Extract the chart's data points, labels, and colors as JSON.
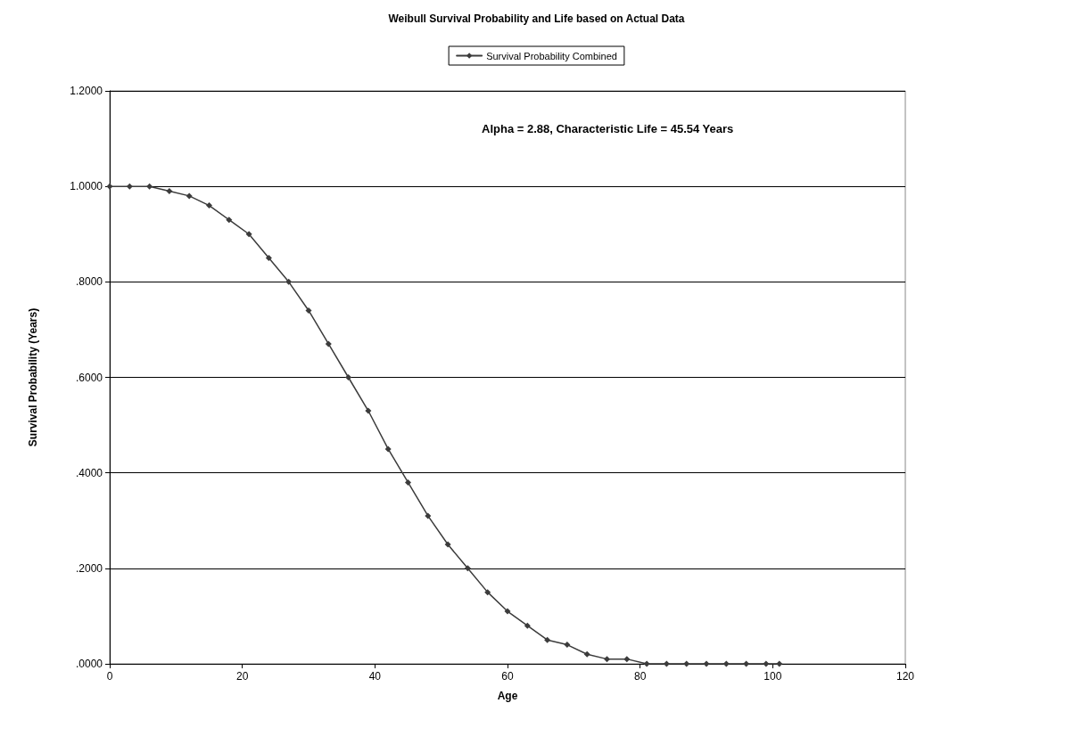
{
  "chart_data": {
    "type": "line",
    "title": "Weibull Survival Probability and Life based on Actual Data",
    "xlabel": "Age",
    "ylabel": "Survival Probability (Years)",
    "annotations": [
      "Alpha = 2.88, Characteristic Life = 45.54 Years"
    ],
    "x": [
      0,
      3,
      6,
      9,
      12,
      15,
      18,
      21,
      24,
      27,
      30,
      33,
      36,
      39,
      42,
      45,
      48,
      51,
      54,
      57,
      60,
      63,
      66,
      69,
      72,
      75,
      78,
      81,
      84,
      87,
      90,
      93,
      96,
      99,
      101
    ],
    "series": [
      {
        "name": "Survival Probability Combined",
        "color": "#3c3c3c",
        "values": [
          1.0,
          1.0,
          1.0,
          0.99,
          0.98,
          0.96,
          0.93,
          0.9,
          0.85,
          0.8,
          0.74,
          0.67,
          0.6,
          0.53,
          0.45,
          0.38,
          0.31,
          0.25,
          0.2,
          0.15,
          0.11,
          0.08,
          0.05,
          0.04,
          0.02,
          0.01,
          0.01,
          0.0,
          0.0,
          0.0,
          0.0,
          0.0,
          0.0,
          0.0,
          0.0
        ]
      }
    ],
    "xlim": [
      0,
      120
    ],
    "xticks": [
      0,
      20,
      40,
      60,
      80,
      100,
      120
    ],
    "ylim": [
      0,
      1.2
    ],
    "yticks": [
      {
        "value": 0,
        "label": ".0000"
      },
      {
        "value": 0.2,
        "label": ".2000"
      },
      {
        "value": 0.4,
        "label": ".4000"
      },
      {
        "value": 0.6,
        "label": ".6000"
      },
      {
        "value": 0.8,
        "label": ".8000"
      },
      {
        "value": 1,
        "label": "1.0000"
      },
      {
        "value": 1.2,
        "label": "1.2000"
      }
    ],
    "grid": "y",
    "legend": "top",
    "marker": "diamond",
    "line_style": "solid"
  }
}
